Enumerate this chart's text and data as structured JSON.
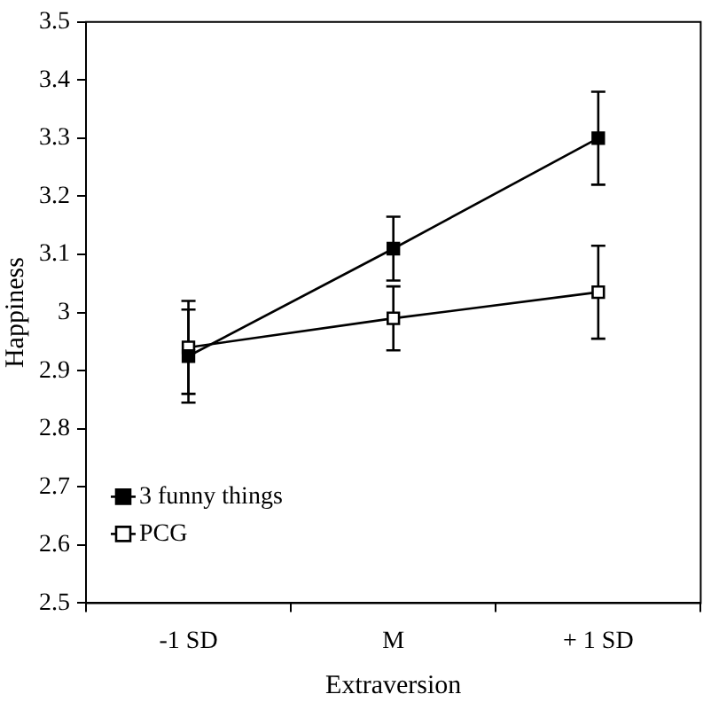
{
  "chart_data": {
    "type": "line",
    "xlabel": "Extraversion",
    "ylabel": "Happiness",
    "categories": [
      "-1 SD",
      "M",
      "+ 1 SD"
    ],
    "series": [
      {
        "name": "3 funny things",
        "color": "#000000",
        "values": [
          2.925,
          3.11,
          3.3
        ],
        "errors": [
          0.08,
          0.055,
          0.08
        ]
      },
      {
        "name": "PCG",
        "color": "#000000",
        "values": [
          2.94,
          2.99,
          3.035
        ],
        "errors": [
          0.08,
          0.055,
          0.08
        ]
      }
    ],
    "ylim": [
      2.5,
      3.5
    ],
    "yticks": [
      2.5,
      2.6,
      2.7,
      2.8,
      2.9,
      3,
      3.1,
      3.2,
      3.3,
      3.4,
      3.5
    ],
    "grid": false,
    "legend": "bottom left",
    "marker": "square",
    "line_style": "solid"
  }
}
